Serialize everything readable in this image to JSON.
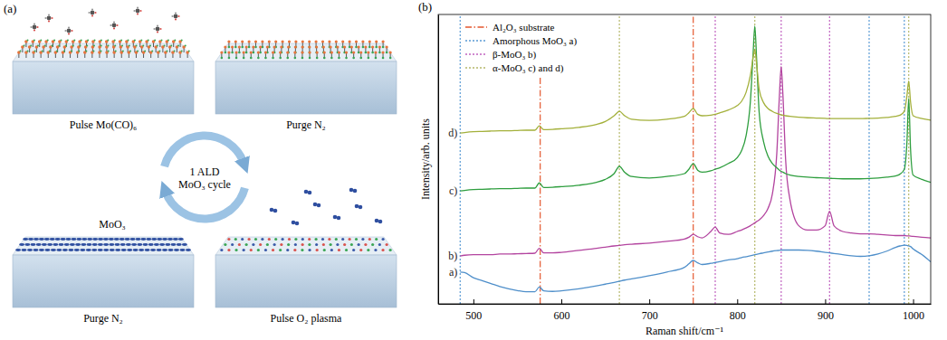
{
  "diagram": {
    "label": "(a)",
    "center_label": "1 ALD MoO₃ cycle",
    "film_label": "MoO₃",
    "steps": [
      {
        "label": "Pulse Mo(CO)₆"
      },
      {
        "label": "Purge N₂"
      },
      {
        "label": "Pulse O₂ plasma"
      },
      {
        "label": "Purge N₂"
      }
    ]
  },
  "chart_data": {
    "type": "line",
    "panel_label": "(b)",
    "x_label": "Raman shift/cm⁻¹",
    "y_label": "Intensity/arb. units",
    "xlim": [
      460,
      1020
    ],
    "ylim": [
      0,
      10
    ],
    "xticks": [
      500,
      600,
      700,
      800,
      900,
      1000
    ],
    "yticks": [],
    "tick_labels": "x",
    "grid": false,
    "legend": "upper left",
    "x": [
      485,
      490,
      500,
      510,
      520,
      530,
      540,
      550,
      560,
      570,
      575,
      580,
      590,
      600,
      620,
      640,
      650,
      660,
      666,
      672,
      680,
      700,
      720,
      740,
      745,
      750,
      755,
      760,
      770,
      775,
      780,
      790,
      800,
      805,
      810,
      815,
      818,
      820,
      822,
      825,
      830,
      835,
      840,
      845,
      848,
      850,
      852,
      855,
      860,
      870,
      880,
      890,
      900,
      905,
      910,
      920,
      930,
      940,
      950,
      960,
      970,
      980,
      985,
      990,
      993,
      995,
      997,
      1000,
      1010,
      1020
    ],
    "series": [
      {
        "name": "a)",
        "color": "#4f8fca",
        "values": [
          1.1,
          1.08,
          0.9,
          0.8,
          0.7,
          0.6,
          0.52,
          0.46,
          0.42,
          0.42,
          0.58,
          0.45,
          0.43,
          0.45,
          0.52,
          0.62,
          0.68,
          0.74,
          0.78,
          0.82,
          0.86,
          0.97,
          1.1,
          1.26,
          1.38,
          1.5,
          1.42,
          1.36,
          1.4,
          1.43,
          1.46,
          1.52,
          1.56,
          1.6,
          1.63,
          1.66,
          1.68,
          1.7,
          1.71,
          1.73,
          1.76,
          1.79,
          1.82,
          1.84,
          1.85,
          1.86,
          1.86,
          1.86,
          1.86,
          1.86,
          1.85,
          1.82,
          1.78,
          1.76,
          1.74,
          1.7,
          1.66,
          1.64,
          1.66,
          1.72,
          1.82,
          1.95,
          2.0,
          2.03,
          2.02,
          2.0,
          1.98,
          1.9,
          1.7,
          1.45
        ]
      },
      {
        "name": "b)",
        "color": "#b3449f",
        "values": [
          1.65,
          1.68,
          1.7,
          1.7,
          1.7,
          1.72,
          1.72,
          1.73,
          1.74,
          1.75,
          1.92,
          1.76,
          1.76,
          1.78,
          1.85,
          1.92,
          1.96,
          2.0,
          2.02,
          2.04,
          2.06,
          2.1,
          2.16,
          2.24,
          2.3,
          2.4,
          2.32,
          2.28,
          2.5,
          2.65,
          2.45,
          2.4,
          2.5,
          2.55,
          2.62,
          2.7,
          2.76,
          2.8,
          2.84,
          2.9,
          3.05,
          3.3,
          3.8,
          5.2,
          7.2,
          8.2,
          7.2,
          5.0,
          3.6,
          2.7,
          2.55,
          2.55,
          2.7,
          3.2,
          2.7,
          2.5,
          2.45,
          2.42,
          2.42,
          2.4,
          2.38,
          2.36,
          2.36,
          2.36,
          2.35,
          2.35,
          2.34,
          2.33,
          2.3,
          2.28
        ]
      },
      {
        "name": "c)",
        "color": "#2e9e3e",
        "values": [
          3.9,
          3.92,
          3.95,
          3.96,
          3.97,
          3.98,
          3.98,
          3.99,
          4.0,
          4.0,
          4.18,
          4.02,
          4.03,
          4.05,
          4.1,
          4.2,
          4.3,
          4.5,
          4.75,
          4.55,
          4.4,
          4.35,
          4.4,
          4.5,
          4.65,
          4.85,
          4.62,
          4.55,
          4.6,
          4.65,
          4.7,
          4.85,
          5.05,
          5.3,
          5.8,
          7.0,
          8.6,
          9.6,
          8.5,
          6.6,
          5.6,
          5.1,
          4.85,
          4.7,
          4.62,
          4.58,
          4.55,
          4.5,
          4.45,
          4.4,
          4.38,
          4.36,
          4.35,
          4.34,
          4.33,
          4.32,
          4.32,
          4.32,
          4.33,
          4.35,
          4.38,
          4.42,
          4.48,
          4.65,
          5.6,
          7.1,
          5.4,
          4.45,
          4.3,
          4.2
        ]
      },
      {
        "name": "d)",
        "color": "#a3b03a",
        "values": [
          5.9,
          5.92,
          5.95,
          5.96,
          5.97,
          5.98,
          5.98,
          5.99,
          6.0,
          6.0,
          6.15,
          6.02,
          6.03,
          6.05,
          6.1,
          6.2,
          6.3,
          6.5,
          6.65,
          6.5,
          6.38,
          6.34,
          6.38,
          6.48,
          6.6,
          6.75,
          6.55,
          6.5,
          6.52,
          6.55,
          6.6,
          6.7,
          6.85,
          7.0,
          7.3,
          7.9,
          8.5,
          8.8,
          8.3,
          7.4,
          6.95,
          6.75,
          6.65,
          6.58,
          6.55,
          6.53,
          6.52,
          6.5,
          6.48,
          6.45,
          6.43,
          6.42,
          6.41,
          6.4,
          6.4,
          6.4,
          6.4,
          6.4,
          6.41,
          6.42,
          6.44,
          6.48,
          6.52,
          6.65,
          7.2,
          7.7,
          7.0,
          6.5,
          6.4,
          6.35
        ]
      }
    ],
    "reference_lines": [
      {
        "name": "Al₂O₃ substrate",
        "color": "#e4572e",
        "line_style": "dashdot",
        "positions": [
          576,
          750
        ]
      },
      {
        "name": "Amorphous MoO₃ a)",
        "color": "#5a9bd5",
        "line_style": "dotted",
        "positions": [
          485,
          950,
          990
        ]
      },
      {
        "name": "β-MoO₃ b)",
        "color": "#c163c0",
        "line_style": "dotted",
        "positions": [
          775,
          850,
          905
        ]
      },
      {
        "name": "α-MoO₃ c) and d)",
        "color": "#b5b86a",
        "line_style": "dotted",
        "positions": [
          666,
          820,
          995
        ]
      }
    ]
  }
}
